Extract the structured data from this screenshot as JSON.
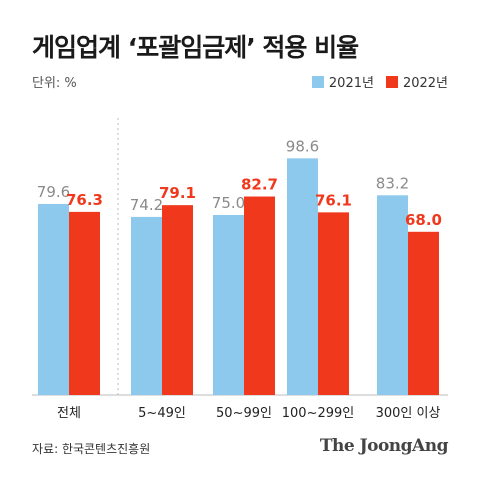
{
  "header": {
    "title": "게임업계 ‘포괄임금제’ 적용 비율",
    "unit": "단위: %"
  },
  "footer": {
    "source": "자료: 한국콘텐츠진흥원",
    "brand": "The JoongAng"
  },
  "colors": {
    "series2021": "#8cc9ec",
    "series2022": "#f0391c",
    "label2021": "#8a8a8a",
    "label2022": "#f0391c",
    "axis": "#bbbbbb"
  },
  "chart_data": {
    "type": "bar",
    "title": "게임업계 ‘포괄임금제’ 적용 비율",
    "ylabel": "단위: %",
    "ylim": [
      0,
      100
    ],
    "grid": false,
    "legend_position": "top-right",
    "categories": [
      "전체",
      "5~49인",
      "50~99인",
      "100~299인",
      "300인 이상"
    ],
    "series": [
      {
        "name": "2021년",
        "values": [
          79.6,
          74.2,
          75.0,
          98.6,
          83.2
        ],
        "labels": [
          "79.6",
          "74.2",
          "75.0",
          "98.6",
          "83.2"
        ]
      },
      {
        "name": "2022년",
        "values": [
          76.3,
          79.1,
          82.7,
          76.1,
          68.0
        ],
        "labels": [
          "76.3",
          "79.1",
          "82.7",
          "76.1",
          "68.0"
        ]
      }
    ]
  }
}
